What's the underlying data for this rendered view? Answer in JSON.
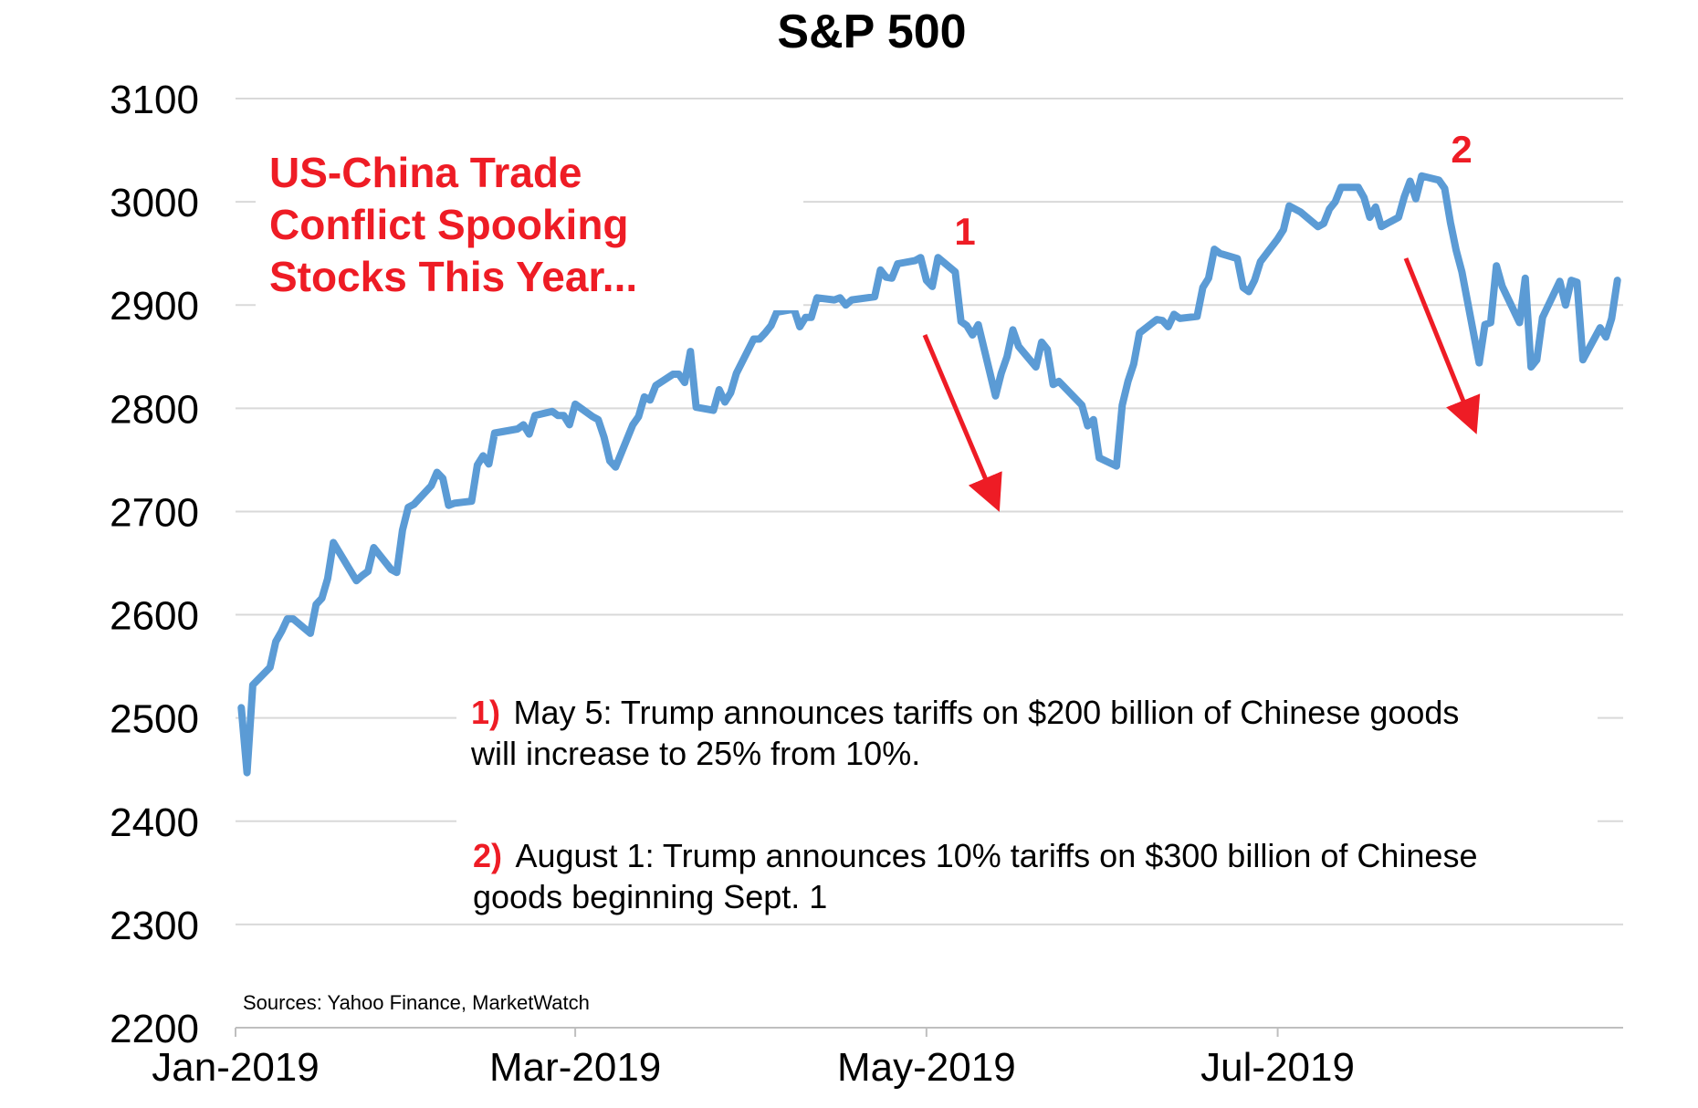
{
  "chart_data": {
    "type": "line",
    "title": "S&P 500",
    "xlabel": "",
    "ylabel": "",
    "ylim": [
      2200,
      3100
    ],
    "yticks": [
      2200,
      2300,
      2400,
      2500,
      2600,
      2700,
      2800,
      2900,
      3000,
      3100
    ],
    "xticks": [
      {
        "label": "Jan-2019",
        "date": "2019-01-01"
      },
      {
        "label": "Mar-2019",
        "date": "2019-03-01"
      },
      {
        "label": "May-2019",
        "date": "2019-05-01"
      },
      {
        "label": "Jul-2019",
        "date": "2019-07-01"
      }
    ],
    "xlim": [
      "2019-01-01",
      "2019-08-30"
    ],
    "grid": true,
    "series": [
      {
        "color": "#5b9bd5",
        "points": [
          [
            "2019-01-02",
            2510
          ],
          [
            "2019-01-03",
            2447
          ],
          [
            "2019-01-04",
            2532
          ],
          [
            "2019-01-07",
            2549
          ],
          [
            "2019-01-08",
            2574
          ],
          [
            "2019-01-09",
            2584
          ],
          [
            "2019-01-10",
            2596
          ],
          [
            "2019-01-11",
            2596
          ],
          [
            "2019-01-14",
            2582
          ],
          [
            "2019-01-15",
            2610
          ],
          [
            "2019-01-16",
            2616
          ],
          [
            "2019-01-17",
            2635
          ],
          [
            "2019-01-18",
            2670
          ],
          [
            "2019-01-22",
            2633
          ],
          [
            "2019-01-23",
            2638
          ],
          [
            "2019-01-24",
            2642
          ],
          [
            "2019-01-25",
            2665
          ],
          [
            "2019-01-28",
            2644
          ],
          [
            "2019-01-29",
            2641
          ],
          [
            "2019-01-30",
            2682
          ],
          [
            "2019-01-31",
            2704
          ],
          [
            "2019-02-01",
            2707
          ],
          [
            "2019-02-04",
            2725
          ],
          [
            "2019-02-05",
            2738
          ],
          [
            "2019-02-06",
            2732
          ],
          [
            "2019-02-07",
            2706
          ],
          [
            "2019-02-08",
            2708
          ],
          [
            "2019-02-11",
            2710
          ],
          [
            "2019-02-12",
            2745
          ],
          [
            "2019-02-13",
            2754
          ],
          [
            "2019-02-14",
            2746
          ],
          [
            "2019-02-15",
            2776
          ],
          [
            "2019-02-19",
            2780
          ],
          [
            "2019-02-20",
            2784
          ],
          [
            "2019-02-21",
            2775
          ],
          [
            "2019-02-22",
            2793
          ],
          [
            "2019-02-25",
            2797
          ],
          [
            "2019-02-26",
            2793
          ],
          [
            "2019-02-27",
            2793
          ],
          [
            "2019-02-28",
            2784
          ],
          [
            "2019-03-01",
            2804
          ],
          [
            "2019-03-04",
            2792
          ],
          [
            "2019-03-05",
            2789
          ],
          [
            "2019-03-06",
            2772
          ],
          [
            "2019-03-07",
            2749
          ],
          [
            "2019-03-08",
            2743
          ],
          [
            "2019-03-11",
            2784
          ],
          [
            "2019-03-12",
            2792
          ],
          [
            "2019-03-13",
            2811
          ],
          [
            "2019-03-14",
            2808
          ],
          [
            "2019-03-15",
            2822
          ],
          [
            "2019-03-18",
            2833
          ],
          [
            "2019-03-19",
            2833
          ],
          [
            "2019-03-20",
            2825
          ],
          [
            "2019-03-21",
            2855
          ],
          [
            "2019-03-22",
            2801
          ],
          [
            "2019-03-25",
            2798
          ],
          [
            "2019-03-26",
            2818
          ],
          [
            "2019-03-27",
            2806
          ],
          [
            "2019-03-28",
            2815
          ],
          [
            "2019-03-29",
            2834
          ],
          [
            "2019-04-01",
            2867
          ],
          [
            "2019-04-02",
            2867
          ],
          [
            "2019-04-03",
            2873
          ],
          [
            "2019-04-04",
            2880
          ],
          [
            "2019-04-05",
            2893
          ],
          [
            "2019-04-08",
            2896
          ],
          [
            "2019-04-09",
            2879
          ],
          [
            "2019-04-10",
            2888
          ],
          [
            "2019-04-11",
            2888
          ],
          [
            "2019-04-12",
            2907
          ],
          [
            "2019-04-15",
            2905
          ],
          [
            "2019-04-16",
            2907
          ],
          [
            "2019-04-17",
            2900
          ],
          [
            "2019-04-18",
            2905
          ],
          [
            "2019-04-22",
            2908
          ],
          [
            "2019-04-23",
            2934
          ],
          [
            "2019-04-24",
            2927
          ],
          [
            "2019-04-25",
            2926
          ],
          [
            "2019-04-26",
            2940
          ],
          [
            "2019-04-29",
            2943
          ],
          [
            "2019-04-30",
            2946
          ],
          [
            "2019-05-01",
            2924
          ],
          [
            "2019-05-02",
            2918
          ],
          [
            "2019-05-03",
            2946
          ],
          [
            "2019-05-06",
            2932
          ],
          [
            "2019-05-07",
            2884
          ],
          [
            "2019-05-08",
            2880
          ],
          [
            "2019-05-09",
            2871
          ],
          [
            "2019-05-10",
            2881
          ],
          [
            "2019-05-13",
            2812
          ],
          [
            "2019-05-14",
            2834
          ],
          [
            "2019-05-15",
            2850
          ],
          [
            "2019-05-16",
            2876
          ],
          [
            "2019-05-17",
            2860
          ],
          [
            "2019-05-20",
            2840
          ],
          [
            "2019-05-21",
            2864
          ],
          [
            "2019-05-22",
            2857
          ],
          [
            "2019-05-23",
            2823
          ],
          [
            "2019-05-24",
            2826
          ],
          [
            "2019-05-28",
            2803
          ],
          [
            "2019-05-29",
            2783
          ],
          [
            "2019-05-30",
            2789
          ],
          [
            "2019-05-31",
            2752
          ],
          [
            "2019-06-03",
            2744
          ],
          [
            "2019-06-04",
            2803
          ],
          [
            "2019-06-05",
            2826
          ],
          [
            "2019-06-06",
            2843
          ],
          [
            "2019-06-07",
            2873
          ],
          [
            "2019-06-10",
            2886
          ],
          [
            "2019-06-11",
            2885
          ],
          [
            "2019-06-12",
            2879
          ],
          [
            "2019-06-13",
            2891
          ],
          [
            "2019-06-14",
            2887
          ],
          [
            "2019-06-17",
            2889
          ],
          [
            "2019-06-18",
            2917
          ],
          [
            "2019-06-19",
            2926
          ],
          [
            "2019-06-20",
            2954
          ],
          [
            "2019-06-21",
            2950
          ],
          [
            "2019-06-24",
            2945
          ],
          [
            "2019-06-25",
            2917
          ],
          [
            "2019-06-26",
            2913
          ],
          [
            "2019-06-27",
            2924
          ],
          [
            "2019-06-28",
            2942
          ],
          [
            "2019-07-01",
            2964
          ],
          [
            "2019-07-02",
            2973
          ],
          [
            "2019-07-03",
            2996
          ],
          [
            "2019-07-05",
            2990
          ],
          [
            "2019-07-08",
            2976
          ],
          [
            "2019-07-09",
            2979
          ],
          [
            "2019-07-10",
            2993
          ],
          [
            "2019-07-11",
            3000
          ],
          [
            "2019-07-12",
            3014
          ],
          [
            "2019-07-15",
            3014
          ],
          [
            "2019-07-16",
            3004
          ],
          [
            "2019-07-17",
            2985
          ],
          [
            "2019-07-18",
            2995
          ],
          [
            "2019-07-19",
            2976
          ],
          [
            "2019-07-22",
            2985
          ],
          [
            "2019-07-23",
            3005
          ],
          [
            "2019-07-24",
            3020
          ],
          [
            "2019-07-25",
            3003
          ],
          [
            "2019-07-26",
            3025
          ],
          [
            "2019-07-29",
            3021
          ],
          [
            "2019-07-30",
            3013
          ],
          [
            "2019-07-31",
            2980
          ],
          [
            "2019-08-01",
            2953
          ],
          [
            "2019-08-02",
            2932
          ],
          [
            "2019-08-05",
            2844
          ],
          [
            "2019-08-06",
            2881
          ],
          [
            "2019-08-07",
            2883
          ],
          [
            "2019-08-08",
            2938
          ],
          [
            "2019-08-09",
            2918
          ],
          [
            "2019-08-12",
            2883
          ],
          [
            "2019-08-13",
            2926
          ],
          [
            "2019-08-14",
            2840
          ],
          [
            "2019-08-15",
            2847
          ],
          [
            "2019-08-16",
            2888
          ],
          [
            "2019-08-19",
            2923
          ],
          [
            "2019-08-20",
            2900
          ],
          [
            "2019-08-21",
            2924
          ],
          [
            "2019-08-22",
            2922
          ],
          [
            "2019-08-23",
            2847
          ],
          [
            "2019-08-26",
            2878
          ],
          [
            "2019-08-27",
            2869
          ],
          [
            "2019-08-28",
            2887
          ],
          [
            "2019-08-29",
            2924
          ]
        ]
      }
    ],
    "annotations": {
      "headline": [
        "US-China Trade",
        "Conflict Spooking",
        "Stocks This Year..."
      ],
      "marker1": "1",
      "marker2": "2",
      "note1": {
        "num": "1)",
        "line1": "May 5: Trump announces tariffs on $200 billion of  Chinese goods",
        "line2": "will increase to 25% from 10%."
      },
      "note2": {
        "num": "2)",
        "line1": "August 1: Trump announces 10% tariffs on $300 billion of Chinese",
        "line2": "goods beginning Sept. 1"
      },
      "source": "Sources: Yahoo Finance, MarketWatch",
      "accent_color": "#ee1c25",
      "line_color": "#5b9bd5"
    }
  }
}
